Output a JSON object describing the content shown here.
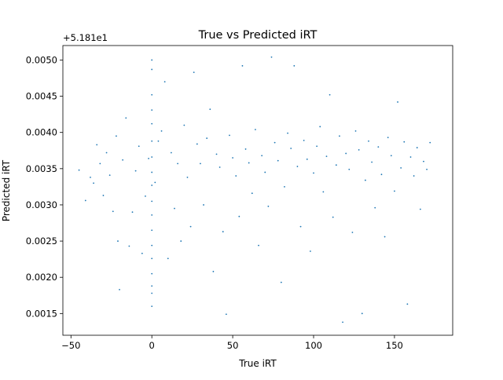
{
  "chart_data": {
    "type": "scatter",
    "title": "True vs Predicted iRT",
    "xlabel": "True iRT",
    "ylabel": "Predicted iRT",
    "xlim": [
      -55,
      186
    ],
    "ylim": [
      0.0012,
      0.0052
    ],
    "y_offset_label": "+5.181e1",
    "x_ticks": [
      {
        "value": -50,
        "label": "−50"
      },
      {
        "value": 0,
        "label": "0"
      },
      {
        "value": 50,
        "label": "50"
      },
      {
        "value": 100,
        "label": "100"
      },
      {
        "value": 150,
        "label": "150"
      }
    ],
    "y_ticks": [
      {
        "value": 0.0015,
        "label": "0.0015"
      },
      {
        "value": 0.002,
        "label": "0.0020"
      },
      {
        "value": 0.0025,
        "label": "0.0025"
      },
      {
        "value": 0.003,
        "label": "0.0030"
      },
      {
        "value": 0.0035,
        "label": "0.0035"
      },
      {
        "value": 0.004,
        "label": "0.0040"
      },
      {
        "value": 0.0045,
        "label": "0.0045"
      },
      {
        "value": 0.005,
        "label": "0.0050"
      }
    ],
    "marker_color": "#1f77b4",
    "grid": false,
    "series": [
      {
        "values": [
          [
            -45,
            0.00348
          ],
          [
            -41,
            0.00306
          ],
          [
            -38,
            0.00338
          ],
          [
            -36,
            0.0033
          ],
          [
            -34,
            0.00383
          ],
          [
            -32,
            0.00357
          ],
          [
            -30,
            0.00313
          ],
          [
            -28,
            0.00372
          ],
          [
            -26,
            0.00341
          ],
          [
            -24,
            0.00291
          ],
          [
            -22,
            0.00395
          ],
          [
            -21,
            0.0025
          ],
          [
            -20,
            0.00183
          ],
          [
            -18,
            0.00362
          ],
          [
            -16,
            0.0042
          ],
          [
            -14,
            0.00243
          ],
          [
            -12,
            0.0029
          ],
          [
            -10,
            0.00347
          ],
          [
            -8,
            0.00381
          ],
          [
            -6,
            0.00233
          ],
          [
            -4,
            0.00312
          ],
          [
            -2,
            0.00364
          ],
          [
            0,
            0.005
          ],
          [
            0,
            0.00487
          ],
          [
            0,
            0.00452
          ],
          [
            0,
            0.00431
          ],
          [
            0,
            0.00412
          ],
          [
            0,
            0.00388
          ],
          [
            0,
            0.00366
          ],
          [
            0,
            0.00345
          ],
          [
            0,
            0.00327
          ],
          [
            0,
            0.00305
          ],
          [
            0,
            0.00286
          ],
          [
            0,
            0.00265
          ],
          [
            0,
            0.00244
          ],
          [
            0,
            0.00226
          ],
          [
            0,
            0.00205
          ],
          [
            0,
            0.00188
          ],
          [
            0,
            0.00178
          ],
          [
            0,
            0.0016
          ],
          [
            2,
            0.00331
          ],
          [
            4,
            0.00388
          ],
          [
            6,
            0.00402
          ],
          [
            8,
            0.0047
          ],
          [
            10,
            0.00226
          ],
          [
            12,
            0.00372
          ],
          [
            14,
            0.00295
          ],
          [
            16,
            0.00357
          ],
          [
            18,
            0.0025
          ],
          [
            20,
            0.0041
          ],
          [
            22,
            0.00338
          ],
          [
            24,
            0.0027
          ],
          [
            26,
            0.00483
          ],
          [
            28,
            0.00384
          ],
          [
            30,
            0.00357
          ],
          [
            32,
            0.003
          ],
          [
            34,
            0.00392
          ],
          [
            36,
            0.00432
          ],
          [
            38,
            0.00208
          ],
          [
            40,
            0.0037
          ],
          [
            42,
            0.00352
          ],
          [
            44,
            0.00263
          ],
          [
            46,
            0.00149
          ],
          [
            48,
            0.00396
          ],
          [
            50,
            0.00365
          ],
          [
            52,
            0.0034
          ],
          [
            54,
            0.00284
          ],
          [
            56,
            0.00492
          ],
          [
            58,
            0.00377
          ],
          [
            60,
            0.00358
          ],
          [
            62,
            0.00316
          ],
          [
            64,
            0.00404
          ],
          [
            66,
            0.00244
          ],
          [
            68,
            0.00368
          ],
          [
            70,
            0.00345
          ],
          [
            72,
            0.00298
          ],
          [
            74,
            0.00504
          ],
          [
            76,
            0.00386
          ],
          [
            78,
            0.00361
          ],
          [
            80,
            0.00193
          ],
          [
            82,
            0.00325
          ],
          [
            84,
            0.00399
          ],
          [
            86,
            0.00378
          ],
          [
            88,
            0.00492
          ],
          [
            90,
            0.00353
          ],
          [
            92,
            0.0027
          ],
          [
            94,
            0.00389
          ],
          [
            96,
            0.00363
          ],
          [
            98,
            0.00236
          ],
          [
            100,
            0.00344
          ],
          [
            102,
            0.00381
          ],
          [
            104,
            0.00408
          ],
          [
            106,
            0.00318
          ],
          [
            108,
            0.00367
          ],
          [
            110,
            0.00452
          ],
          [
            112,
            0.00283
          ],
          [
            114,
            0.00355
          ],
          [
            116,
            0.00395
          ],
          [
            118,
            0.00138
          ],
          [
            120,
            0.00371
          ],
          [
            122,
            0.00349
          ],
          [
            124,
            0.00262
          ],
          [
            126,
            0.00402
          ],
          [
            128,
            0.00376
          ],
          [
            130,
            0.0015
          ],
          [
            132,
            0.00334
          ],
          [
            134,
            0.00388
          ],
          [
            136,
            0.00359
          ],
          [
            138,
            0.00296
          ],
          [
            140,
            0.0038
          ],
          [
            142,
            0.00342
          ],
          [
            144,
            0.00256
          ],
          [
            146,
            0.00393
          ],
          [
            148,
            0.00368
          ],
          [
            150,
            0.00319
          ],
          [
            152,
            0.00442
          ],
          [
            154,
            0.00351
          ],
          [
            156,
            0.00387
          ],
          [
            158,
            0.00163
          ],
          [
            160,
            0.00366
          ],
          [
            162,
            0.0034
          ],
          [
            164,
            0.00379
          ],
          [
            166,
            0.00294
          ],
          [
            168,
            0.0036
          ],
          [
            170,
            0.00349
          ],
          [
            172,
            0.00386
          ]
        ]
      }
    ]
  }
}
